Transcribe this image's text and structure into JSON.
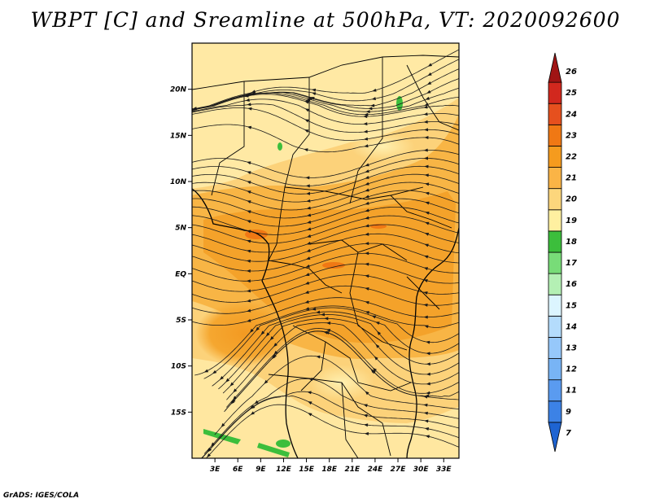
{
  "title": "WBPT [C] and Sreamline at 500hPa, VT: 2020092600",
  "credit": "GrADS: IGES/COLA",
  "map": {
    "lat_labels": [
      "20N",
      "15N",
      "10N",
      "5N",
      "EQ",
      "5S",
      "10S",
      "15S"
    ],
    "lat_values": [
      20,
      15,
      10,
      5,
      0,
      -5,
      -10,
      -15
    ],
    "lon_labels": [
      "3E",
      "6E",
      "9E",
      "12E",
      "15E",
      "18E",
      "21E",
      "24E",
      "27E",
      "30E",
      "33E"
    ],
    "lon_values": [
      3,
      6,
      9,
      12,
      15,
      18,
      21,
      24,
      27,
      30,
      33
    ],
    "lat_range": [
      -20,
      25
    ],
    "lon_range": [
      0,
      35
    ]
  },
  "colorbar": {
    "labels": [
      "7",
      "9",
      "11",
      "12",
      "13",
      "14",
      "15",
      "16",
      "17",
      "18",
      "19",
      "20",
      "21",
      "22",
      "23",
      "24",
      "25",
      "26"
    ],
    "colors": [
      "#1e64d2",
      "#3c82e6",
      "#5a9bf0",
      "#78b4f5",
      "#96c8fa",
      "#b4dcfc",
      "#dcf5ff",
      "#b4f0b4",
      "#78dc78",
      "#3cbe3c",
      "#fff0a0",
      "#fcd67c",
      "#fab446",
      "#f59b1e",
      "#f07814",
      "#e6501e",
      "#d2281e",
      "#a01414"
    ]
  },
  "colors": {
    "field_low": "#ffe39a",
    "field_mid": "#fcc05e",
    "field_high": "#f5a22a",
    "field_peak": "#f07814",
    "green": "#3cbe3c",
    "streamline": "#1a1a1a"
  }
}
